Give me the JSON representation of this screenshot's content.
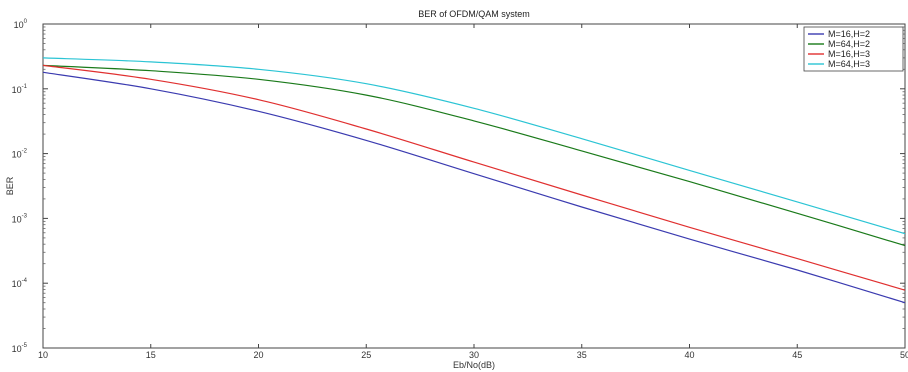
{
  "chart_data": {
    "type": "line",
    "title": "BER of OFDM/QAM system",
    "xlabel": "Eb/No(dB)",
    "ylabel": "BER",
    "xlim": [
      10,
      50
    ],
    "ylim": [
      1e-05,
      1
    ],
    "yscale": "log",
    "grid": false,
    "legend_position": "top-right",
    "x_ticks": [
      "10",
      "15",
      "20",
      "25",
      "30",
      "35",
      "40",
      "45",
      "50"
    ],
    "y_ticks": [
      {
        "base": "10",
        "exp": "0"
      },
      {
        "base": "10",
        "exp": "-1"
      },
      {
        "base": "10",
        "exp": "-2"
      },
      {
        "base": "10",
        "exp": "-3"
      },
      {
        "base": "10",
        "exp": "-4"
      },
      {
        "base": "10",
        "exp": "-5"
      }
    ],
    "x": [
      10,
      15,
      20,
      25,
      30,
      35,
      40,
      45,
      50
    ],
    "series": [
      {
        "name": "M=16,H=2",
        "color": "#3b3bb0",
        "values": [
          0.18,
          0.1,
          0.045,
          0.016,
          0.0049,
          0.0015,
          0.00048,
          0.00016,
          5e-05
        ]
      },
      {
        "name": "M=64,H=2",
        "color": "#1a7a1a",
        "values": [
          0.23,
          0.19,
          0.14,
          0.08,
          0.032,
          0.011,
          0.0037,
          0.0012,
          0.00038
        ]
      },
      {
        "name": "M=16,H=3",
        "color": "#e03030",
        "values": [
          0.23,
          0.14,
          0.068,
          0.024,
          0.0074,
          0.0023,
          0.00073,
          0.00024,
          7.8e-05
        ]
      },
      {
        "name": "M=64,H=3",
        "color": "#2bc4d4",
        "values": [
          0.3,
          0.26,
          0.2,
          0.12,
          0.05,
          0.017,
          0.0055,
          0.0018,
          0.00058
        ]
      }
    ]
  }
}
